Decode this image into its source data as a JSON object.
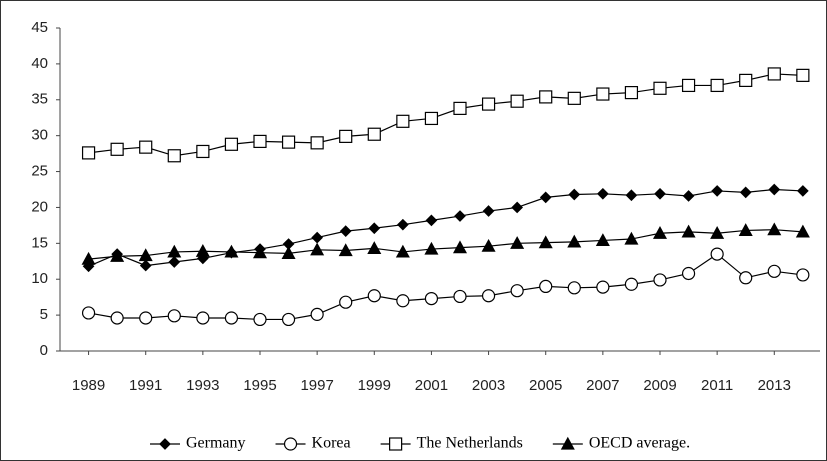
{
  "chart_data": {
    "type": "line",
    "x": [
      1989,
      1990,
      1991,
      1992,
      1993,
      1994,
      1995,
      1996,
      1997,
      1998,
      1999,
      2000,
      2001,
      2002,
      2003,
      2004,
      2005,
      2006,
      2007,
      2008,
      2009,
      2010,
      2011,
      2012,
      2013,
      2014
    ],
    "xlim": [
      1988,
      2014.6
    ],
    "xticks": [
      1989,
      1991,
      1993,
      1995,
      1997,
      1999,
      2001,
      2003,
      2005,
      2007,
      2009,
      2011,
      2013
    ],
    "ylim": [
      0,
      45
    ],
    "yticks": [
      0,
      5,
      10,
      15,
      20,
      25,
      30,
      35,
      40,
      45
    ],
    "grid": false,
    "legend": "bottom",
    "series": [
      {
        "name": "Germany",
        "color": "#000000",
        "marker": "diamond",
        "values": [
          11.8,
          13.5,
          11.9,
          12.4,
          12.9,
          13.7,
          14.2,
          14.9,
          15.8,
          16.7,
          17.1,
          17.6,
          18.2,
          18.8,
          19.5,
          20.0,
          21.4,
          21.8,
          21.9,
          21.7,
          21.9,
          21.6,
          22.3,
          22.1,
          22.5,
          22.3
        ]
      },
      {
        "name": "Korea",
        "color": "#000000",
        "marker": "circle",
        "values": [
          5.3,
          4.6,
          4.6,
          4.9,
          4.6,
          4.6,
          4.4,
          4.4,
          5.1,
          6.8,
          7.7,
          7.0,
          7.3,
          7.6,
          7.7,
          8.4,
          9.0,
          8.8,
          8.9,
          9.3,
          9.9,
          10.8,
          13.5,
          10.2,
          11.1,
          10.6
        ]
      },
      {
        "name": "The Netherlands",
        "color": "#000000",
        "marker": "square",
        "values": [
          27.6,
          28.1,
          28.4,
          27.2,
          27.8,
          28.8,
          29.2,
          29.1,
          29.0,
          29.9,
          30.2,
          32.0,
          32.4,
          33.8,
          34.4,
          34.8,
          35.4,
          35.2,
          35.8,
          36.0,
          36.6,
          37.0,
          37.0,
          37.7,
          38.6,
          38.4
        ]
      },
      {
        "name": "OECD average.",
        "color": "#000000",
        "marker": "triangle",
        "values": [
          12.8,
          13.2,
          13.3,
          13.8,
          13.9,
          13.8,
          13.7,
          13.6,
          14.1,
          14.0,
          14.3,
          13.8,
          14.2,
          14.4,
          14.6,
          15.0,
          15.1,
          15.2,
          15.4,
          15.6,
          16.4,
          16.6,
          16.4,
          16.8,
          16.9,
          16.6
        ]
      }
    ]
  }
}
